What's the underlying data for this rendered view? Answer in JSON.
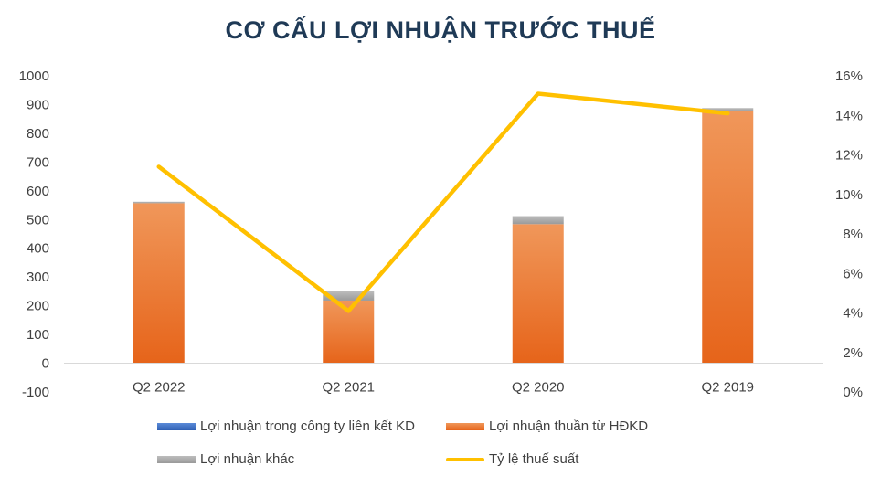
{
  "chart_data": {
    "type": "bar",
    "title": "CƠ CẤU LỢI NHUẬN TRƯỚC THUẾ",
    "categories": [
      "Q2 2022",
      "Q2 2021",
      "Q2 2020",
      "Q2 2019"
    ],
    "series": [
      {
        "name": "Lợi nhuận trong công ty liên kết KD",
        "type": "bar-stacked",
        "axis": "left",
        "color": "#4472c4",
        "values": [
          0,
          0,
          0,
          0
        ]
      },
      {
        "name": "Lợi nhuận thuần từ HĐKD",
        "type": "bar-stacked",
        "axis": "left",
        "color": "#ed7d31",
        "values": [
          557,
          218,
          484,
          876
        ]
      },
      {
        "name": "Lợi nhuận khác",
        "type": "bar-stacked",
        "axis": "left",
        "color": "#a5a5a5",
        "values": [
          5,
          33,
          28,
          12
        ]
      },
      {
        "name": "Tỷ lệ thuế suất",
        "type": "line",
        "axis": "right",
        "color": "#ffc000",
        "values": [
          0.114,
          0.041,
          0.151,
          0.141
        ]
      }
    ],
    "y_left": {
      "range": [
        -100,
        1000
      ],
      "ticks": [
        "-100",
        "0",
        "100",
        "200",
        "300",
        "400",
        "500",
        "600",
        "700",
        "800",
        "900",
        "1000"
      ]
    },
    "y_right": {
      "range": [
        0,
        0.16
      ],
      "ticks": [
        "0%",
        "2%",
        "4%",
        "6%",
        "8%",
        "10%",
        "12%",
        "14%",
        "16%"
      ]
    },
    "grid": false,
    "legend_position": "bottom"
  }
}
